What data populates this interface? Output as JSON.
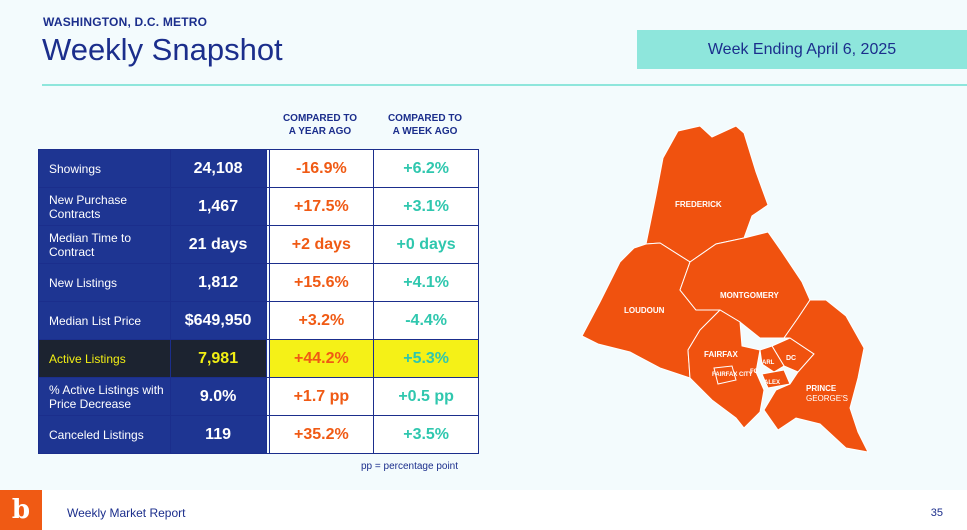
{
  "header": {
    "region": "WASHINGTON, D.C. METRO",
    "title": "Weekly Snapshot",
    "week_ending": "Week Ending April 6, 2025"
  },
  "columns": {
    "year": "COMPARED TO\nA YEAR AGO",
    "week": "COMPARED TO\nA WEEK AGO"
  },
  "rows": [
    {
      "label": "Showings",
      "value": "24,108",
      "yoy": "-16.9%",
      "wow": "+6.2%"
    },
    {
      "label": "New Purchase Contracts",
      "value": "1,467",
      "yoy": "+17.5%",
      "wow": "+3.1%"
    },
    {
      "label": "Median Time to Contract",
      "value": "21 days",
      "yoy": "+2 days",
      "wow": "+0 days"
    },
    {
      "label": "New Listings",
      "value": "1,812",
      "yoy": "+15.6%",
      "wow": "+4.1%"
    },
    {
      "label": "Median List Price",
      "value": "$649,950",
      "yoy": "+3.2%",
      "wow": "-4.4%"
    },
    {
      "label": "Active Listings",
      "value": "7,981",
      "yoy": "+44.2%",
      "wow": "+5.3%",
      "highlight": true
    },
    {
      "label": "% Active Listings with Price Decrease",
      "value": "9.0%",
      "yoy": "+1.7 pp",
      "wow": "+0.5 pp"
    },
    {
      "label": "Canceled Listings",
      "value": "119",
      "yoy": "+35.2%",
      "wow": "+3.5%"
    }
  ],
  "note": "pp = percentage point",
  "map": {
    "fill_color": "#f0520f",
    "regions": {
      "frederick": "FREDERICK",
      "loudoun": "LOUDOUN",
      "montgomery": "MONTGOMERY",
      "fairfax": "FAIRFAX",
      "fairfax_city": "FAIRFAX CITY",
      "fc": "FC",
      "arl": "ARL",
      "alex": "ALEX",
      "dc": "DC",
      "prince_georges_1": "PRINCE",
      "prince_georges_2": "GEORGE'S"
    }
  },
  "footer": {
    "logo_glyph": "b",
    "report": "Weekly Market Report",
    "page": "35"
  },
  "colors": {
    "navy": "#1b2e8c",
    "orange": "#f05a14",
    "teal": "#2fc7ae",
    "highlight_yellow": "#f5f117"
  }
}
